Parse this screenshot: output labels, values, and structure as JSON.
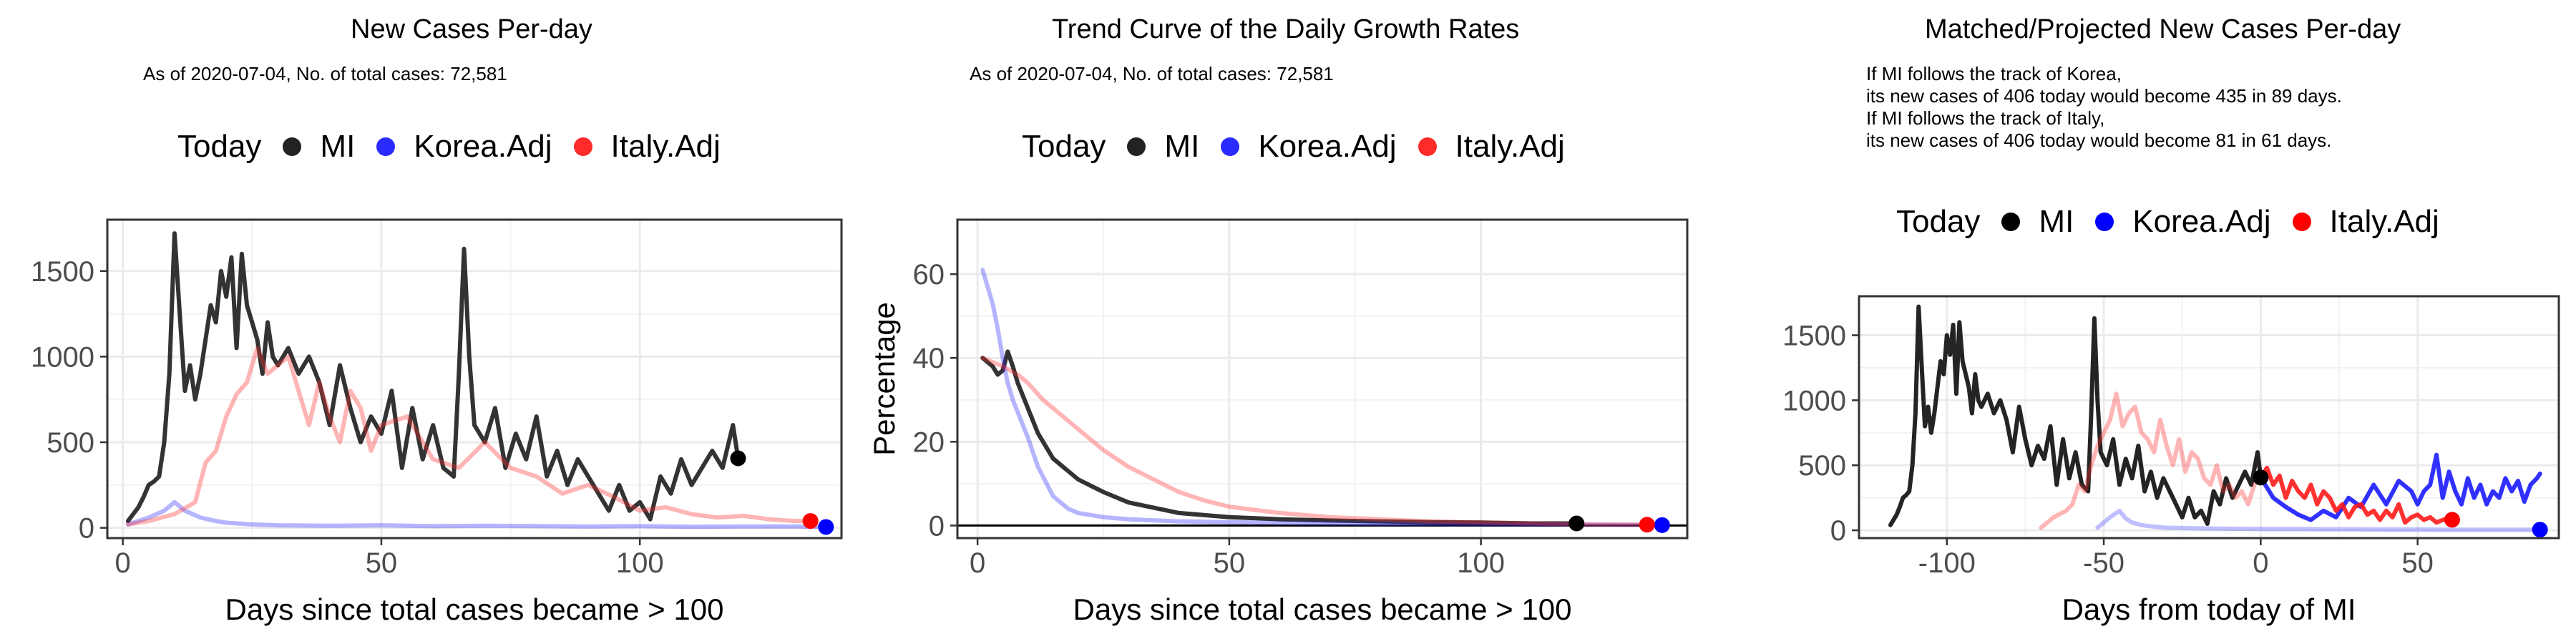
{
  "colors": {
    "mi": "#222222",
    "korea": "#2b2bff",
    "italy": "#ff2b2b",
    "grid": "#ebebeb",
    "border": "#333333"
  },
  "legend": {
    "title": "Today",
    "items": [
      "MI",
      "Korea.Adj",
      "Italy.Adj"
    ]
  },
  "panels": [
    {
      "title": "New Cases Per-day",
      "subtitle": "As of 2020-07-04, No. of total cases: 72,581"
    },
    {
      "title": "Trend Curve of the Daily Growth Rates",
      "subtitle": "As of 2020-07-04, No. of total cases: 72,581"
    },
    {
      "title": "Matched/Projected New Cases Per-day",
      "notes": [
        "If MI follows the track of Korea,",
        "its new cases of 406 today would become 435 in 89 days.",
        "If MI follows the track of Italy,",
        "its new cases of 406 today would become 81 in 61 days."
      ]
    }
  ],
  "chart_data": [
    {
      "type": "line",
      "title": "New Cases Per-day",
      "xlabel": "Days since total cases became > 100",
      "ylabel": "",
      "xlim": [
        -3,
        139
      ],
      "ylim": [
        -60,
        1800
      ],
      "xticks": [
        0,
        50,
        100
      ],
      "yticks": [
        0,
        500,
        1000,
        1500
      ],
      "grid": true,
      "legend_position": "top",
      "series": [
        {
          "name": "MI",
          "color": "#222222",
          "opacity": 0.92,
          "x": [
            1,
            2,
            3,
            4,
            5,
            6,
            7,
            8,
            9,
            10,
            11,
            12,
            13,
            14,
            15,
            16,
            17,
            18,
            19,
            20,
            21,
            22,
            23,
            24,
            25,
            26,
            27,
            28,
            29,
            30,
            32,
            34,
            36,
            38,
            40,
            42,
            44,
            46,
            48,
            50,
            52,
            54,
            56,
            58,
            60,
            62,
            64,
            65,
            66,
            67,
            68,
            70,
            72,
            74,
            76,
            78,
            80,
            82,
            84,
            86,
            88,
            90,
            92,
            94,
            96,
            98,
            100,
            102,
            104,
            106,
            108,
            110,
            112,
            114,
            116,
            118,
            119
          ],
          "y": [
            40,
            80,
            120,
            180,
            250,
            270,
            300,
            500,
            900,
            1720,
            1250,
            800,
            950,
            750,
            900,
            1100,
            1300,
            1200,
            1500,
            1350,
            1580,
            1050,
            1600,
            1300,
            1200,
            1100,
            900,
            1200,
            1000,
            950,
            1050,
            900,
            1000,
            850,
            600,
            950,
            700,
            500,
            650,
            550,
            800,
            350,
            700,
            400,
            600,
            350,
            300,
            900,
            1630,
            1000,
            600,
            500,
            700,
            350,
            550,
            400,
            650,
            300,
            450,
            250,
            400,
            300,
            200,
            100,
            250,
            100,
            150,
            50,
            300,
            200,
            400,
            250,
            350,
            450,
            350,
            600,
            406
          ]
        },
        {
          "name": "Korea.Adj",
          "color": "#2b2bff",
          "opacity": 0.35,
          "x": [
            1,
            5,
            8,
            10,
            12,
            15,
            18,
            20,
            25,
            30,
            40,
            50,
            60,
            70,
            80,
            90,
            100,
            110,
            120,
            130,
            136
          ],
          "y": [
            20,
            60,
            100,
            150,
            100,
            60,
            40,
            30,
            20,
            15,
            12,
            15,
            10,
            12,
            10,
            8,
            10,
            6,
            8,
            8,
            5
          ]
        },
        {
          "name": "Italy.Adj",
          "color": "#ff2b2b",
          "opacity": 0.35,
          "x": [
            1,
            5,
            10,
            14,
            16,
            18,
            20,
            22,
            24,
            26,
            28,
            30,
            32,
            34,
            36,
            38,
            40,
            42,
            44,
            46,
            48,
            50,
            55,
            60,
            65,
            70,
            75,
            80,
            85,
            90,
            95,
            100,
            105,
            110,
            115,
            120,
            125,
            130,
            133
          ],
          "y": [
            20,
            40,
            80,
            150,
            380,
            450,
            650,
            780,
            850,
            1050,
            900,
            950,
            1000,
            800,
            600,
            850,
            650,
            500,
            800,
            700,
            450,
            600,
            650,
            400,
            350,
            500,
            350,
            300,
            200,
            250,
            180,
            100,
            120,
            80,
            60,
            70,
            50,
            40,
            40
          ]
        }
      ],
      "today_points": [
        {
          "series": "MI",
          "x": 119,
          "y": 406
        },
        {
          "series": "Korea.Adj",
          "x": 136,
          "y": 5
        },
        {
          "series": "Italy.Adj",
          "x": 133,
          "y": 40
        }
      ]
    },
    {
      "type": "line",
      "title": "Trend Curve of the Daily Growth Rates",
      "xlabel": "Days since total cases became > 100",
      "ylabel": "Percentage",
      "xlim": [
        -4,
        141
      ],
      "ylim": [
        -3,
        73
      ],
      "xticks": [
        0,
        50,
        100
      ],
      "yticks": [
        0,
        20,
        40,
        60
      ],
      "grid": true,
      "legend_position": "top",
      "series": [
        {
          "name": "MI",
          "color": "#222222",
          "opacity": 0.92,
          "x": [
            1,
            2,
            3,
            4,
            5,
            6,
            7,
            8,
            10,
            12,
            15,
            20,
            25,
            30,
            40,
            50,
            60,
            70,
            80,
            90,
            100,
            110,
            119
          ],
          "y": [
            40,
            39,
            38,
            36,
            37,
            41.5,
            38,
            34,
            28,
            22,
            16,
            11,
            8,
            5.5,
            3,
            2,
            1.5,
            1.2,
            1,
            0.8,
            0.7,
            0.5,
            0.5
          ]
        },
        {
          "name": "Korea.Adj",
          "color": "#2b2bff",
          "opacity": 0.35,
          "x": [
            1,
            2,
            3,
            4,
            5,
            6,
            7,
            8,
            10,
            12,
            15,
            18,
            20,
            25,
            30,
            40,
            50,
            60,
            80,
            100,
            120,
            136
          ],
          "y": [
            61,
            57,
            53,
            47,
            40,
            34,
            30,
            27,
            21,
            14,
            7,
            4,
            3,
            2,
            1.5,
            1,
            0.8,
            0.6,
            0.4,
            0.3,
            0.2,
            0.1
          ]
        },
        {
          "name": "Italy.Adj",
          "color": "#ff2b2b",
          "opacity": 0.35,
          "x": [
            1,
            3,
            5,
            8,
            10,
            13,
            16,
            20,
            25,
            30,
            35,
            40,
            45,
            50,
            60,
            70,
            80,
            90,
            100,
            110,
            120,
            133
          ],
          "y": [
            40,
            39,
            38,
            36,
            34,
            30,
            27,
            23,
            18,
            14,
            11,
            8,
            6,
            4.5,
            3,
            2,
            1.5,
            1,
            0.7,
            0.5,
            0.3,
            0.2
          ]
        }
      ],
      "today_points": [
        {
          "series": "MI",
          "x": 119,
          "y": 0.5
        },
        {
          "series": "Korea.Adj",
          "x": 136,
          "y": 0.1
        },
        {
          "series": "Italy.Adj",
          "x": 133,
          "y": 0.2
        }
      ]
    },
    {
      "type": "line",
      "title": "Matched/Projected New Cases Per-day",
      "xlabel": "Days from today of MI",
      "ylabel": "",
      "xlim": [
        -128,
        95
      ],
      "ylim": [
        -60,
        1800
      ],
      "xticks": [
        -100,
        -50,
        0,
        50
      ],
      "yticks": [
        0,
        500,
        1000,
        1500
      ],
      "grid": true,
      "legend_position": "top",
      "series": [
        {
          "name": "MI",
          "color": "#111111",
          "opacity": 0.92,
          "x": [
            -118,
            -117,
            -116,
            -115,
            -114,
            -113,
            -112,
            -111,
            -110,
            -109,
            -108,
            -107,
            -106,
            -105,
            -104,
            -103,
            -102,
            -101,
            -100,
            -99,
            -98,
            -97,
            -96,
            -95,
            -94,
            -93,
            -92,
            -91,
            -90,
            -89,
            -87,
            -85,
            -83,
            -81,
            -79,
            -77,
            -75,
            -73,
            -71,
            -69,
            -67,
            -65,
            -63,
            -61,
            -59,
            -57,
            -55,
            -54,
            -53,
            -52,
            -51,
            -49,
            -47,
            -45,
            -43,
            -41,
            -39,
            -37,
            -35,
            -33,
            -31,
            -29,
            -27,
            -25,
            -23,
            -21,
            -19,
            -17,
            -15,
            -13,
            -11,
            -9,
            -7,
            -5,
            -3,
            -1,
            0
          ],
          "y": [
            40,
            80,
            120,
            180,
            250,
            270,
            300,
            500,
            900,
            1720,
            1250,
            800,
            950,
            750,
            900,
            1100,
            1300,
            1200,
            1500,
            1350,
            1580,
            1050,
            1600,
            1300,
            1200,
            1100,
            900,
            1200,
            1000,
            950,
            1050,
            900,
            1000,
            850,
            600,
            950,
            700,
            500,
            650,
            550,
            800,
            350,
            700,
            400,
            600,
            350,
            300,
            900,
            1630,
            1000,
            600,
            500,
            700,
            350,
            550,
            400,
            650,
            300,
            450,
            250,
            400,
            300,
            200,
            100,
            250,
            100,
            150,
            50,
            300,
            200,
            400,
            250,
            350,
            450,
            350,
            600,
            406
          ]
        },
        {
          "name": "Korea.Adj",
          "color": "#2b2bff",
          "opacity": 0.3,
          "x": [
            -52,
            -48,
            -45,
            -43,
            -41,
            -38,
            -35,
            -30,
            -20,
            -10,
            0,
            10,
            20,
            30,
            40,
            50,
            60,
            70,
            80,
            89
          ],
          "y": [
            20,
            100,
            150,
            90,
            60,
            40,
            30,
            20,
            15,
            12,
            10,
            10,
            8,
            8,
            6,
            6,
            5,
            5,
            5,
            5
          ]
        },
        {
          "name": "Italy.Adj",
          "color": "#ff2b2b",
          "opacity": 0.35,
          "x": [
            -70,
            -66,
            -62,
            -60,
            -58,
            -56,
            -54,
            -52,
            -50,
            -48,
            -46,
            -44,
            -42,
            -40,
            -38,
            -36,
            -34,
            -32,
            -30,
            -28,
            -26,
            -24,
            -22,
            -20,
            -18,
            -16,
            -14,
            -12,
            -10,
            -8,
            -6,
            -4,
            -2,
            0
          ],
          "y": [
            20,
            100,
            150,
            200,
            350,
            300,
            500,
            650,
            750,
            850,
            1050,
            800,
            900,
            950,
            750,
            700,
            600,
            850,
            650,
            500,
            700,
            450,
            600,
            550,
            400,
            350,
            500,
            300,
            350,
            250,
            300,
            200,
            350,
            406
          ]
        },
        {
          "name": "Korea.Adj projected",
          "color": "#1a1aff",
          "opacity": 0.9,
          "x": [
            0,
            4,
            8,
            12,
            16,
            20,
            24,
            28,
            32,
            36,
            40,
            44,
            48,
            50,
            52,
            54,
            56,
            58,
            60,
            62,
            64,
            66,
            68,
            70,
            72,
            74,
            76,
            78,
            80,
            82,
            84,
            86,
            88,
            89
          ],
          "y": [
            406,
            250,
            180,
            120,
            80,
            150,
            100,
            250,
            180,
            350,
            200,
            380,
            300,
            200,
            300,
            350,
            580,
            250,
            450,
            300,
            200,
            400,
            250,
            350,
            200,
            300,
            250,
            400,
            300,
            380,
            220,
            350,
            400,
            435
          ]
        },
        {
          "name": "Italy.Adj projected",
          "color": "#ff1a1a",
          "opacity": 0.9,
          "x": [
            0,
            2,
            4,
            6,
            8,
            10,
            12,
            14,
            16,
            18,
            20,
            22,
            24,
            26,
            28,
            30,
            32,
            34,
            36,
            38,
            40,
            42,
            44,
            46,
            48,
            50,
            52,
            54,
            56,
            58,
            60,
            61
          ],
          "y": [
            406,
            480,
            350,
            420,
            250,
            380,
            300,
            250,
            350,
            200,
            300,
            250,
            150,
            200,
            100,
            180,
            200,
            120,
            150,
            80,
            150,
            100,
            200,
            60,
            100,
            120,
            80,
            100,
            60,
            80,
            90,
            81
          ]
        }
      ],
      "today_points": [
        {
          "series": "MI",
          "x": 0,
          "y": 406
        },
        {
          "series": "Korea.Adj",
          "x": 89,
          "y": 5
        },
        {
          "series": "Italy.Adj",
          "x": 61,
          "y": 81
        }
      ]
    }
  ]
}
